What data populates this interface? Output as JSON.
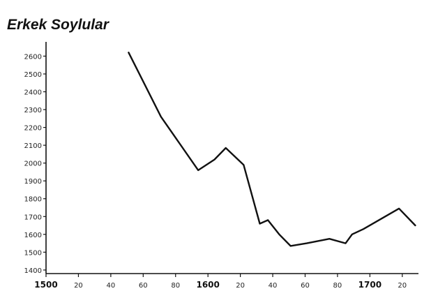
{
  "chart_data": {
    "type": "line",
    "title": "Erkek Soylular",
    "xlabel": "",
    "ylabel": "",
    "xlim": [
      1500,
      1730
    ],
    "ylim": [
      1380,
      2680
    ],
    "grid": false,
    "y_ticks": [
      {
        "value": 2600,
        "label": "2600"
      },
      {
        "value": 2500,
        "label": "2500"
      },
      {
        "value": 2400,
        "label": "2400"
      },
      {
        "value": 2300,
        "label": "2300"
      },
      {
        "value": 2200,
        "label": "2200"
      },
      {
        "value": 2100,
        "label": "2100"
      },
      {
        "value": 2000,
        "label": "2000"
      },
      {
        "value": 1900,
        "label": "1900"
      },
      {
        "value": 1800,
        "label": "1800"
      },
      {
        "value": 1700,
        "label": "1700"
      },
      {
        "value": 1600,
        "label": "1600"
      },
      {
        "value": 1500,
        "label": "1500"
      },
      {
        "value": 1400,
        "label": "1400"
      }
    ],
    "x_ticks": [
      {
        "value": 1500,
        "label": "1500"
      },
      {
        "value": 1520,
        "label": "20"
      },
      {
        "value": 1540,
        "label": "40"
      },
      {
        "value": 1560,
        "label": "60"
      },
      {
        "value": 1580,
        "label": "80"
      },
      {
        "value": 1600,
        "label": "1600"
      },
      {
        "value": 1620,
        "label": "20"
      },
      {
        "value": 1640,
        "label": "40"
      },
      {
        "value": 1660,
        "label": "60"
      },
      {
        "value": 1680,
        "label": "80"
      },
      {
        "value": 1700,
        "label": "1700"
      },
      {
        "value": 1720,
        "label": "20"
      }
    ],
    "series": [
      {
        "points": [
          [
            1551,
            2620
          ],
          [
            1571,
            2260
          ],
          [
            1594,
            1960
          ],
          [
            1604,
            2020
          ],
          [
            1611,
            2085
          ],
          [
            1622,
            1990
          ],
          [
            1632,
            1660
          ],
          [
            1637,
            1680
          ],
          [
            1644,
            1600
          ],
          [
            1651,
            1535
          ],
          [
            1661,
            1550
          ],
          [
            1675,
            1575
          ],
          [
            1685,
            1550
          ],
          [
            1689,
            1600
          ],
          [
            1696,
            1630
          ],
          [
            1718,
            1745
          ],
          [
            1728,
            1650
          ]
        ]
      }
    ]
  }
}
